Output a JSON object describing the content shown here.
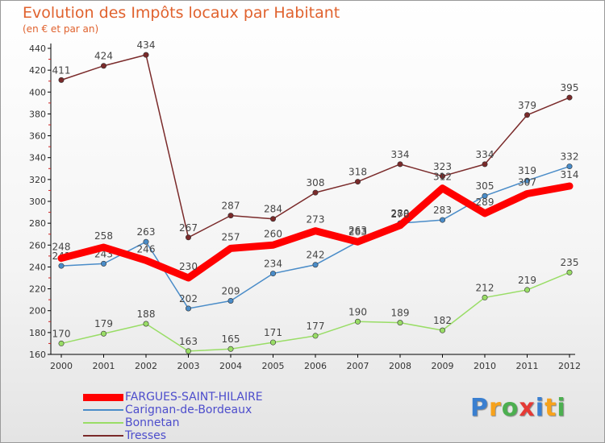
{
  "chart_data": {
    "type": "line",
    "title": "Evolution des Impôts locaux par Habitant",
    "subtitle": "(en € et par an)",
    "xlabel": "",
    "ylabel": "",
    "ylim": [
      160,
      440
    ],
    "yticks": [
      160,
      180,
      200,
      220,
      240,
      260,
      280,
      300,
      320,
      340,
      360,
      380,
      400,
      420,
      440
    ],
    "categories": [
      "2000",
      "2001",
      "2002",
      "2003",
      "2004",
      "2005",
      "2006",
      "2007",
      "2008",
      "2009",
      "2010",
      "2011",
      "2012"
    ],
    "grid": false,
    "legend_position": "bottom-left",
    "series": [
      {
        "name": "Tresses",
        "color": "#7a2a2a",
        "values": [
          411,
          424,
          434,
          267,
          287,
          284,
          308,
          318,
          334,
          323,
          334,
          379,
          395
        ]
      },
      {
        "name": "Carignan-de-Bordeaux",
        "color": "#4a8cc8",
        "values": [
          241,
          243,
          263,
          202,
          209,
          234,
          242,
          263,
          280,
          283,
          305,
          319,
          332
        ]
      },
      {
        "name": "Bonnetan",
        "color": "#99dd66",
        "values": [
          170,
          179,
          188,
          163,
          165,
          171,
          177,
          190,
          189,
          182,
          212,
          219,
          235
        ]
      },
      {
        "name": "FARGUES-SAINT-HILAIRE",
        "color": "#ff0000",
        "values": [
          248,
          258,
          246,
          230,
          257,
          260,
          273,
          263,
          278,
          312,
          289,
          307,
          314
        ]
      }
    ],
    "legend": [
      "FARGUES-SAINT-HILAIRE",
      "Carignan-de-Bordeaux",
      "Bonnetan",
      "Tresses"
    ]
  },
  "brand": {
    "letters": [
      "P",
      "r",
      "o",
      "x",
      "i",
      "t",
      "i"
    ],
    "colors": [
      "#3a7fd0",
      "#f7a21b",
      "#4caf50",
      "#e53935",
      "#3a7fd0",
      "#f7a21b",
      "#4caf50"
    ]
  }
}
